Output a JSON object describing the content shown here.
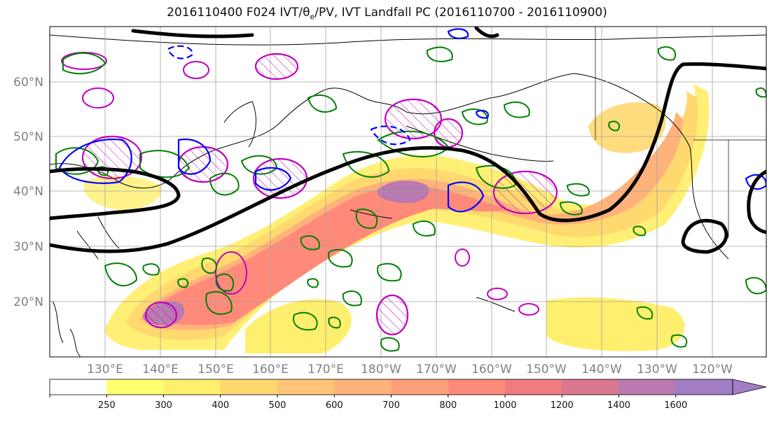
{
  "title_text": "2016110400 F024 IVT/θ",
  "title_sub": "e",
  "title_rest": "/PV, IVT Landfall PC (2016110700 - 2016110900)",
  "lat_labels": [
    "60°N",
    "50°N",
    "40°N",
    "30°N",
    "20°N"
  ],
  "lon_labels": [
    "130°E",
    "140°E",
    "150°E",
    "160°E",
    "170°E",
    "180°W",
    "170°W",
    "160°W",
    "150°W",
    "140°W",
    "130°W",
    "120°W"
  ],
  "colorbar": {
    "levels": [
      "250",
      "300",
      "400",
      "500",
      "600",
      "700",
      "800",
      "1000",
      "1200",
      "1400",
      "1600"
    ],
    "colors": [
      "#ffff70",
      "#ffef6e",
      "#ffd870",
      "#ffc478",
      "#ffb27a",
      "#ff9f7a",
      "#ff8a7a",
      "#f07c80",
      "#d97890",
      "#b87ab0",
      "#a37dc3"
    ],
    "extend": "max"
  },
  "legend_colors": {
    "ivt_fill_low": "#ffef6e",
    "ivt_fill_high": "#a37dc3",
    "theta_e": "#000000",
    "pv_green": "#008000",
    "pv_blue": "#0000ff",
    "pc_magenta": "#c000c0"
  }
}
